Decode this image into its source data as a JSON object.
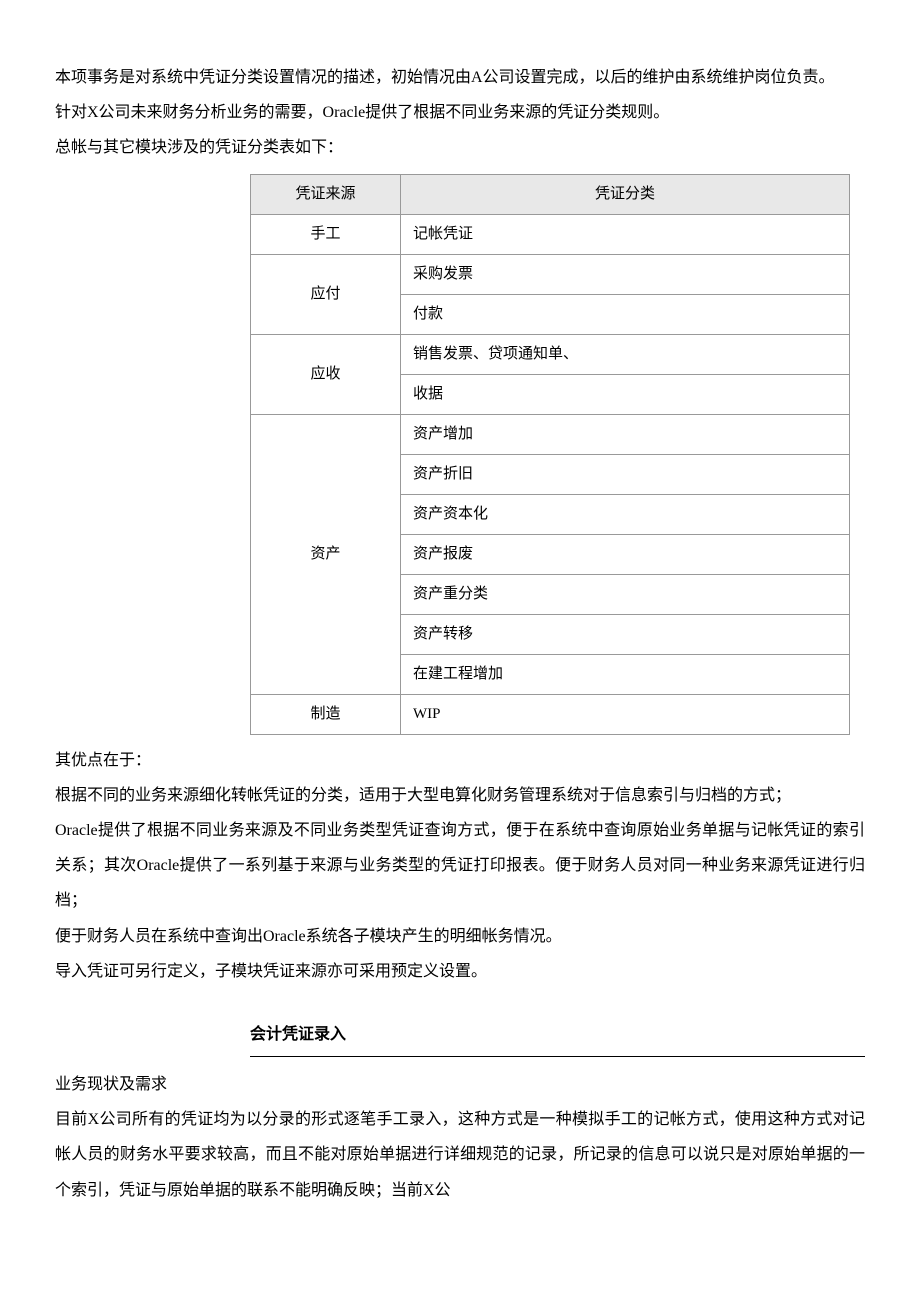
{
  "intro": {
    "p1": "本项事务是对系统中凭证分类设置情况的描述，初始情况由A公司设置完成，以后的维护由系统维护岗位负责。",
    "p2": "针对X公司未来财务分析业务的需要，Oracle提供了根据不同业务来源的凭证分类规则。",
    "p3": "总帐与其它模块涉及的凭证分类表如下：",
    "p4": "其优点在于：",
    "p5": "根据不同的业务来源细化转帐凭证的分类，适用于大型电算化财务管理系统对于信息索引与归档的方式；",
    "p6": "Oracle提供了根据不同业务来源及不同业务类型凭证查询方式，便于在系统中查询原始业务单据与记帐凭证的索引关系；其次Oracle提供了一系列基于来源与业务类型的凭证打印报表。便于财务人员对同一种业务来源凭证进行归档；",
    "p7": "便于财务人员在系统中查询出Oracle系统各子模块产生的明细帐务情况。",
    "p8": "导入凭证可另行定义，子模块凭证来源亦可采用预定义设置。"
  },
  "table": {
    "headers": {
      "source": "凭证来源",
      "category": "凭证分类"
    },
    "rows": [
      {
        "source": "手工",
        "category": "记帐凭证",
        "rowspan": 1
      },
      {
        "source": "应付",
        "category": "采购发票",
        "rowspan": 2
      },
      {
        "source": "",
        "category": "付款",
        "rowspan": 0
      },
      {
        "source": "应收",
        "category": "销售发票、贷项通知单、",
        "rowspan": 2
      },
      {
        "source": "",
        "category": "收据",
        "rowspan": 0
      },
      {
        "source": "资产",
        "category": "资产增加",
        "rowspan": 7
      },
      {
        "source": "",
        "category": "资产折旧",
        "rowspan": 0
      },
      {
        "source": "",
        "category": "资产资本化",
        "rowspan": 0
      },
      {
        "source": "",
        "category": "资产报废",
        "rowspan": 0
      },
      {
        "source": "",
        "category": "资产重分类",
        "rowspan": 0
      },
      {
        "source": "",
        "category": "资产转移",
        "rowspan": 0
      },
      {
        "source": "",
        "category": "在建工程增加",
        "rowspan": 0
      },
      {
        "source": "制造",
        "category": "WIP",
        "rowspan": 1
      }
    ]
  },
  "section2": {
    "heading": "会计凭证录入",
    "sub1": "业务现状及需求",
    "p1": "目前X公司所有的凭证均为以分录的形式逐笔手工录入，这种方式是一种模拟手工的记帐方式，使用这种方式对记帐人员的财务水平要求较高，而且不能对原始单据进行详细规范的记录，所记录的信息可以说只是对原始单据的一个索引，凭证与原始单据的联系不能明确反映；当前X公"
  }
}
